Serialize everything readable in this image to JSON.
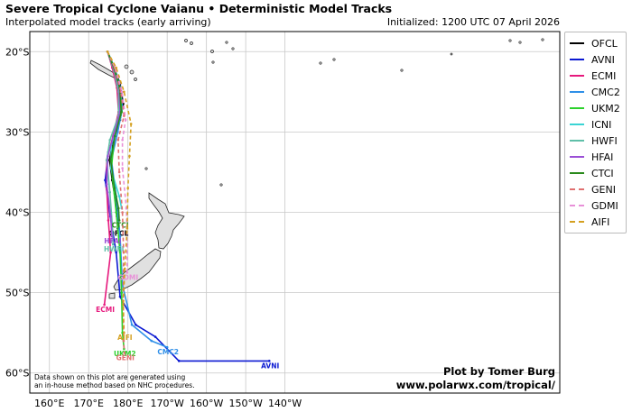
{
  "header": {
    "title": "Severe Tropical Cyclone Vaianu • Deterministic Model Tracks",
    "subtitle": "Interpolated model tracks (early arriving)",
    "initialized": "Initialized: 1200 UTC 07 April 2026"
  },
  "map": {
    "lat_range": [
      -62.5,
      -17.5
    ],
    "lon_range": [
      155,
      290
    ],
    "lat_ticks": [
      {
        "value": -20,
        "label": "20°S"
      },
      {
        "value": -30,
        "label": "30°S"
      },
      {
        "value": -40,
        "label": "40°S"
      },
      {
        "value": -50,
        "label": "50°S"
      },
      {
        "value": -60,
        "label": "60°S"
      }
    ],
    "lon_ticks": [
      {
        "value": 160,
        "label": "160°E"
      },
      {
        "value": 170,
        "label": "170°E"
      },
      {
        "value": 180,
        "label": "180°E"
      },
      {
        "value": 190,
        "label": "170°W"
      },
      {
        "value": 200,
        "label": "160°W"
      },
      {
        "value": 210,
        "label": "150°W"
      },
      {
        "value": 220,
        "label": "140°W"
      }
    ],
    "land_color": "#e0e0e0",
    "ocean_color": "#ffffff",
    "grid_color": "#c8c8c8"
  },
  "legend": [
    {
      "name": "OFCL",
      "color": "#000000",
      "dashed": false
    },
    {
      "name": "AVNI",
      "color": "#0b19d2",
      "dashed": false
    },
    {
      "name": "ECMI",
      "color": "#e6197d",
      "dashed": false
    },
    {
      "name": "CMC2",
      "color": "#2f8fe8",
      "dashed": false
    },
    {
      "name": "UKM2",
      "color": "#2cd12c",
      "dashed": false
    },
    {
      "name": "ICNI",
      "color": "#3ad4d4",
      "dashed": false
    },
    {
      "name": "HWFI",
      "color": "#5fbfa8",
      "dashed": false
    },
    {
      "name": "HFAI",
      "color": "#9b4fd6",
      "dashed": false
    },
    {
      "name": "CTCI",
      "color": "#2a8a1c",
      "dashed": false
    },
    {
      "name": "GENI",
      "color": "#e07070",
      "dashed": true
    },
    {
      "name": "GDMI",
      "color": "#e890d8",
      "dashed": true
    },
    {
      "name": "AIFI",
      "color": "#d4a020",
      "dashed": true
    }
  ],
  "tracks": [
    {
      "name": "OFCL",
      "color": "#000000",
      "dashed": false,
      "end_label": "OFCL",
      "points": [
        [
          -20.0,
          174.8
        ],
        [
          -22.0,
          176.5
        ],
        [
          -24.0,
          178.0
        ],
        [
          -26.5,
          178.8
        ],
        [
          -28.5,
          178.0
        ],
        [
          -31.0,
          176.2
        ],
        [
          -33.5,
          175.3
        ],
        [
          -36.0,
          176.0
        ],
        [
          -38.5,
          176.8
        ],
        [
          -40.5,
          177.2
        ],
        [
          -42.0,
          177.4
        ]
      ]
    },
    {
      "name": "AVNI",
      "color": "#0b19d2",
      "dashed": false,
      "end_label": "AVNI",
      "points": [
        [
          -20.0,
          174.8
        ],
        [
          -22.0,
          176.5
        ],
        [
          -24.5,
          178.0
        ],
        [
          -27.0,
          178.5
        ],
        [
          -29.5,
          177.4
        ],
        [
          -32.5,
          175.0
        ],
        [
          -36.0,
          174.2
        ],
        [
          -40.5,
          175.5
        ],
        [
          -45.0,
          177.0
        ],
        [
          -50.5,
          178.0
        ],
        [
          -54.0,
          182.0
        ],
        [
          -55.5,
          187.0
        ],
        [
          -58.5,
          193.0
        ],
        [
          -58.5,
          216.0
        ]
      ]
    },
    {
      "name": "ECMI",
      "color": "#e6197d",
      "dashed": false,
      "end_label": "ECMI",
      "points": [
        [
          -20.0,
          174.8
        ],
        [
          -22.0,
          176.0
        ],
        [
          -24.5,
          177.2
        ],
        [
          -27.5,
          177.6
        ],
        [
          -30.5,
          176.2
        ],
        [
          -33.5,
          174.6
        ],
        [
          -37.0,
          174.6
        ],
        [
          -41.0,
          175.0
        ],
        [
          -45.0,
          175.6
        ],
        [
          -51.5,
          174.0
        ]
      ]
    },
    {
      "name": "CMC2",
      "color": "#2f8fe8",
      "dashed": false,
      "end_label": "CMC2",
      "points": [
        [
          -20.0,
          174.8
        ],
        [
          -22.0,
          176.6
        ],
        [
          -24.5,
          178.1
        ],
        [
          -27.0,
          178.6
        ],
        [
          -30.0,
          177.4
        ],
        [
          -33.5,
          175.8
        ],
        [
          -38.0,
          177.0
        ],
        [
          -43.0,
          178.0
        ],
        [
          -49.0,
          178.6
        ],
        [
          -54.0,
          181.0
        ],
        [
          -56.0,
          186.0
        ],
        [
          -56.8,
          190.0
        ]
      ]
    },
    {
      "name": "UKM2",
      "color": "#2cd12c",
      "dashed": false,
      "end_label": "UKM2",
      "points": [
        [
          -20.0,
          174.8
        ],
        [
          -22.0,
          176.5
        ],
        [
          -24.5,
          178.0
        ],
        [
          -27.5,
          178.4
        ],
        [
          -30.5,
          176.6
        ],
        [
          -34.5,
          175.8
        ],
        [
          -40.0,
          177.0
        ],
        [
          -45.0,
          178.0
        ],
        [
          -50.0,
          178.4
        ],
        [
          -55.0,
          178.6
        ],
        [
          -57.0,
          179.0
        ]
      ]
    },
    {
      "name": "ICNI",
      "color": "#3ad4d4",
      "dashed": false,
      "end_label": "",
      "points": [
        [
          -20.0,
          174.8
        ],
        [
          -22.5,
          176.6
        ],
        [
          -25.0,
          177.8
        ],
        [
          -28.5,
          177.8
        ],
        [
          -31.5,
          175.8
        ],
        [
          -34.5,
          175.6
        ],
        [
          -38.0,
          177.8
        ],
        [
          -39.5,
          178.4
        ]
      ]
    },
    {
      "name": "HWFI",
      "color": "#5fbfa8",
      "dashed": false,
      "end_label": "HWFI",
      "points": [
        [
          -20.0,
          174.8
        ],
        [
          -22.5,
          176.5
        ],
        [
          -25.0,
          177.6
        ],
        [
          -28.0,
          177.6
        ],
        [
          -31.0,
          175.4
        ],
        [
          -33.5,
          174.6
        ],
        [
          -37.5,
          175.4
        ],
        [
          -41.5,
          176.0
        ],
        [
          -44.0,
          176.2
        ]
      ]
    },
    {
      "name": "HFAI",
      "color": "#9b4fd6",
      "dashed": false,
      "end_label": "HFAI",
      "points": [
        [
          -20.0,
          174.8
        ],
        [
          -22.0,
          176.3
        ],
        [
          -24.5,
          177.8
        ],
        [
          -27.5,
          178.0
        ],
        [
          -30.5,
          176.3
        ],
        [
          -33.0,
          174.9
        ],
        [
          -36.5,
          174.6
        ],
        [
          -40.5,
          175.6
        ],
        [
          -43.0,
          175.9
        ]
      ]
    },
    {
      "name": "CTCI",
      "color": "#2a8a1c",
      "dashed": false,
      "end_label": "CTCI",
      "points": [
        [
          -20.0,
          174.8
        ],
        [
          -22.0,
          176.4
        ],
        [
          -24.5,
          177.9
        ],
        [
          -27.5,
          178.3
        ],
        [
          -30.5,
          176.7
        ],
        [
          -33.5,
          175.6
        ],
        [
          -37.0,
          176.6
        ],
        [
          -39.5,
          177.6
        ],
        [
          -41.0,
          177.8
        ]
      ]
    },
    {
      "name": "GENI",
      "color": "#e07070",
      "dashed": true,
      "end_label": "GENI",
      "points": [
        [
          -20.0,
          174.8
        ],
        [
          -22.0,
          176.6
        ],
        [
          -25.0,
          178.2
        ],
        [
          -28.0,
          179.0
        ],
        [
          -31.0,
          177.5
        ],
        [
          -35.0,
          177.8
        ],
        [
          -40.0,
          178.6
        ],
        [
          -45.0,
          178.9
        ],
        [
          -51.0,
          178.8
        ],
        [
          -56.0,
          178.9
        ],
        [
          -57.5,
          179.1
        ]
      ]
    },
    {
      "name": "GDMI",
      "color": "#e890d8",
      "dashed": true,
      "end_label": "GDMI",
      "points": [
        [
          -20.0,
          174.8
        ],
        [
          -22.0,
          176.8
        ],
        [
          -25.0,
          178.5
        ],
        [
          -28.5,
          179.4
        ],
        [
          -31.0,
          178.6
        ],
        [
          -34.5,
          178.6
        ],
        [
          -39.5,
          179.6
        ],
        [
          -44.0,
          179.8
        ],
        [
          -47.5,
          179.8
        ]
      ]
    },
    {
      "name": "AIFI",
      "color": "#d4a020",
      "dashed": true,
      "end_label": "AIFI",
      "points": [
        [
          -20.0,
          174.8
        ],
        [
          -22.0,
          177.0
        ],
        [
          -25.0,
          179.0
        ],
        [
          -29.0,
          180.8
        ],
        [
          -33.0,
          180.4
        ],
        [
          -37.0,
          180.0
        ],
        [
          -42.0,
          179.8
        ],
        [
          -47.0,
          179.2
        ],
        [
          -51.5,
          178.8
        ],
        [
          -55.0,
          179.0
        ]
      ]
    }
  ],
  "footer": {
    "note_line1": "Data shown on this plot are generated using",
    "note_line2": "an in-house method based on NHC procedures.",
    "credit_line1": "Plot by Tomer Burg",
    "credit_line2": "www.polarwx.com/tropical/"
  }
}
